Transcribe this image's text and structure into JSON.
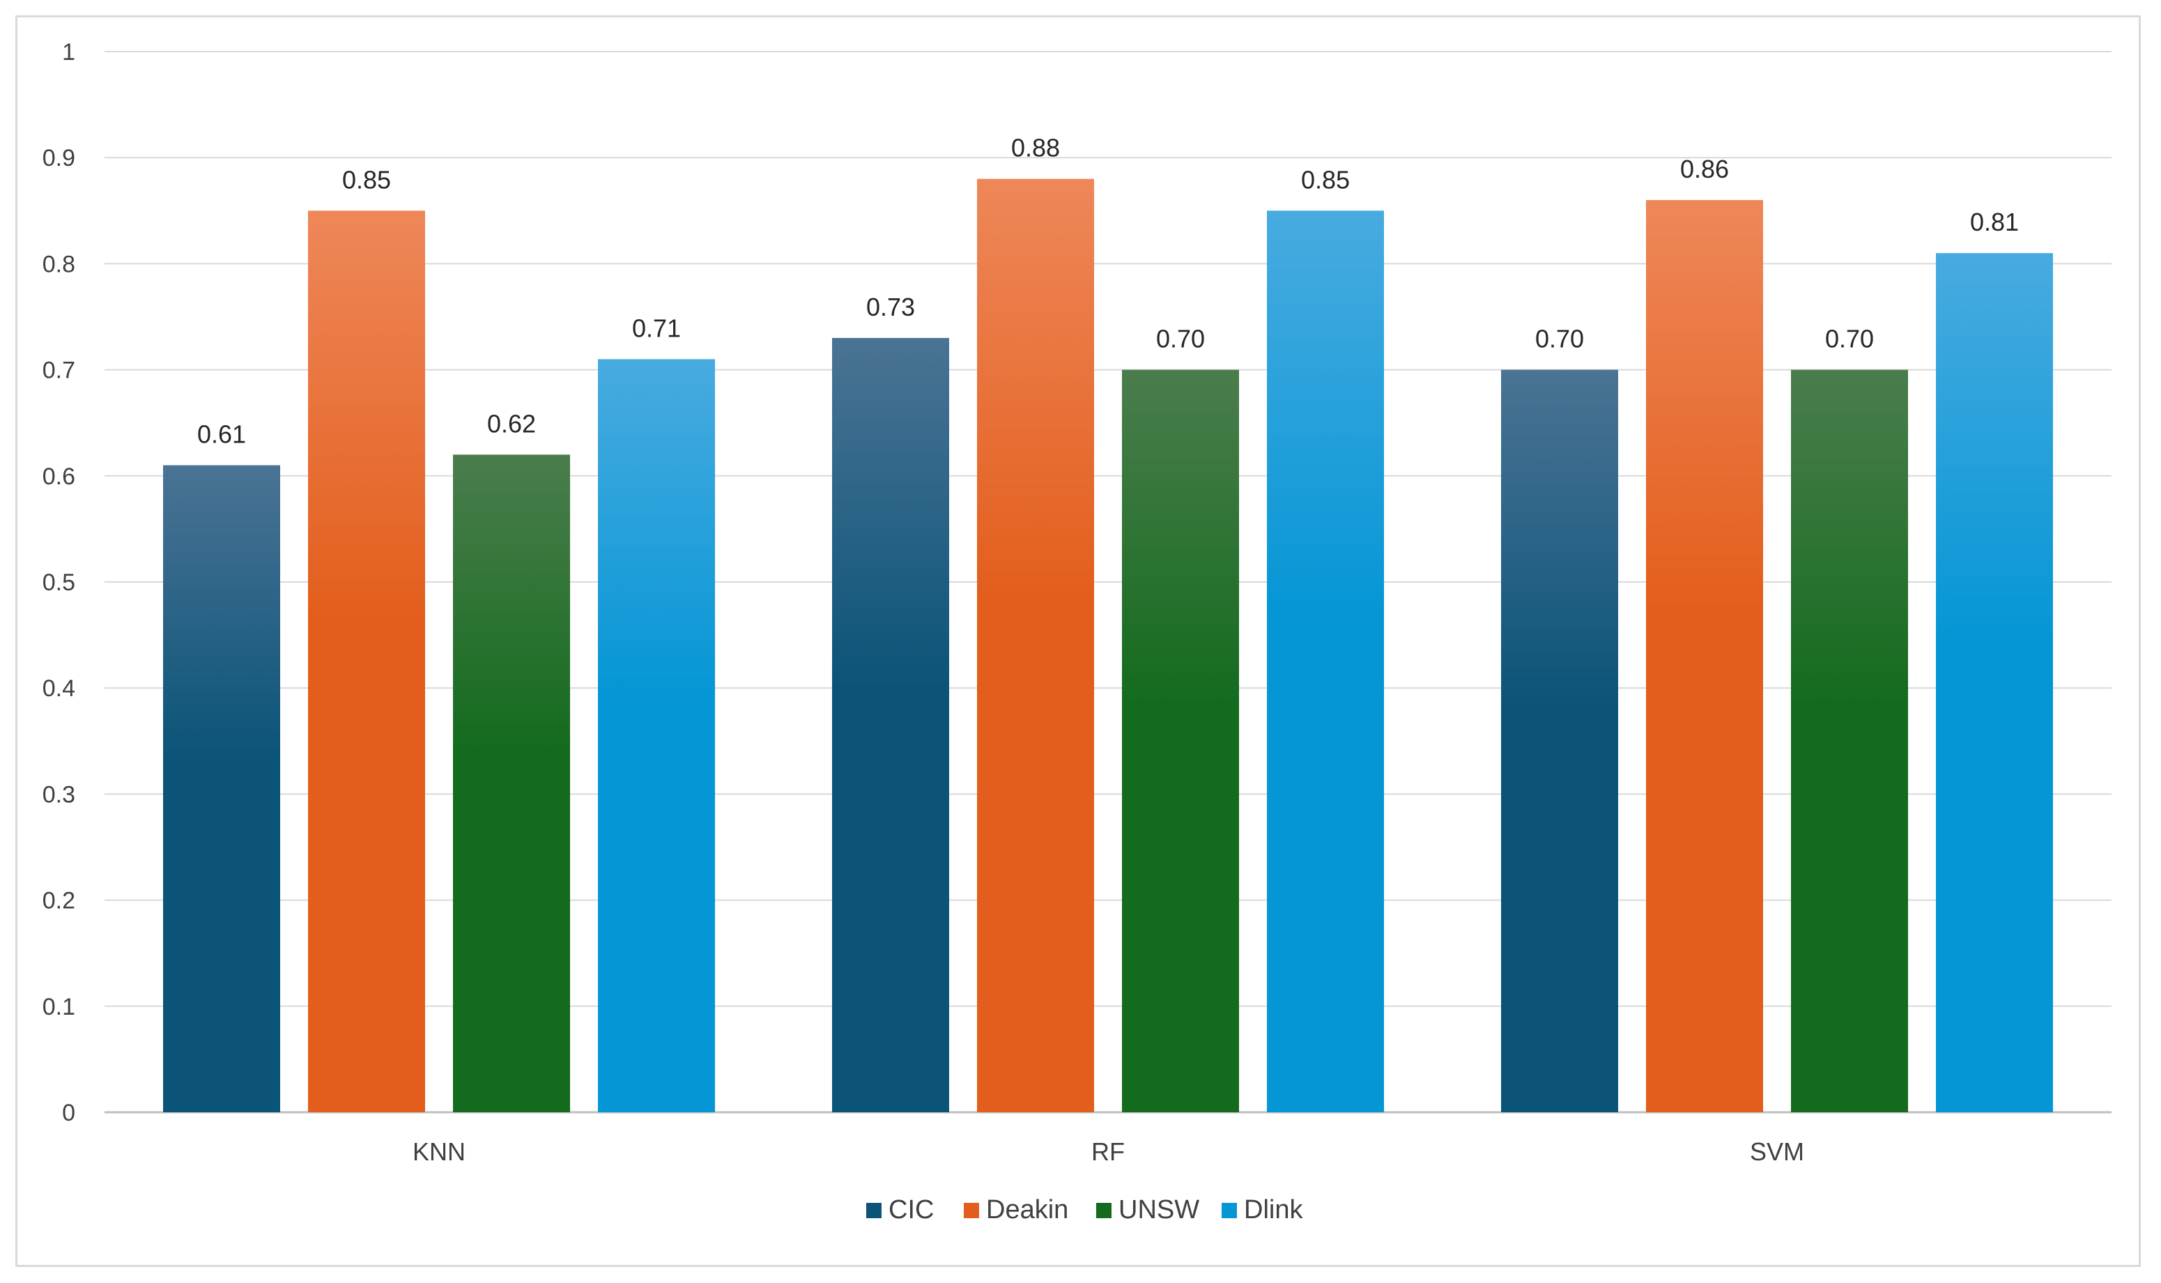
{
  "chart_data": {
    "type": "bar",
    "title": "",
    "xlabel": "",
    "ylabel": "",
    "categories": [
      "KNN",
      "RF",
      "SVM"
    ],
    "ylim": [
      0,
      1
    ],
    "yticks": [
      0,
      0.1,
      0.2,
      0.3,
      0.4,
      0.5,
      0.6,
      0.7,
      0.8,
      0.9,
      1
    ],
    "ytick_labels": [
      "0",
      "0.1",
      "0.2",
      "0.3",
      "0.4",
      "0.5",
      "0.6",
      "0.7",
      "0.8",
      "0.9",
      "1"
    ],
    "grid": true,
    "legend_position": "bottom",
    "series": [
      {
        "name": "CIC",
        "values": [
          0.61,
          0.73,
          0.7
        ],
        "labels": [
          "0.61",
          "0.73",
          "0.70"
        ],
        "color_top": "#4a7394",
        "color_bottom": "#0b5478"
      },
      {
        "name": "Deakin",
        "values": [
          0.85,
          0.88,
          0.86
        ],
        "labels": [
          "0.85",
          "0.88",
          "0.86"
        ],
        "color_top": "#ee8759",
        "color_bottom": "#e35e1c"
      },
      {
        "name": "UNSW",
        "values": [
          0.62,
          0.7,
          0.7
        ],
        "labels": [
          "0.62",
          "0.70",
          "0.70"
        ],
        "color_top": "#4a7d4c",
        "color_bottom": "#146b1e"
      },
      {
        "name": "Dlink",
        "values": [
          0.71,
          0.85,
          0.81
        ],
        "labels": [
          "0.71",
          "0.85",
          "0.81"
        ],
        "color_top": "#48abe0",
        "color_bottom": "#0596d5"
      }
    ]
  }
}
